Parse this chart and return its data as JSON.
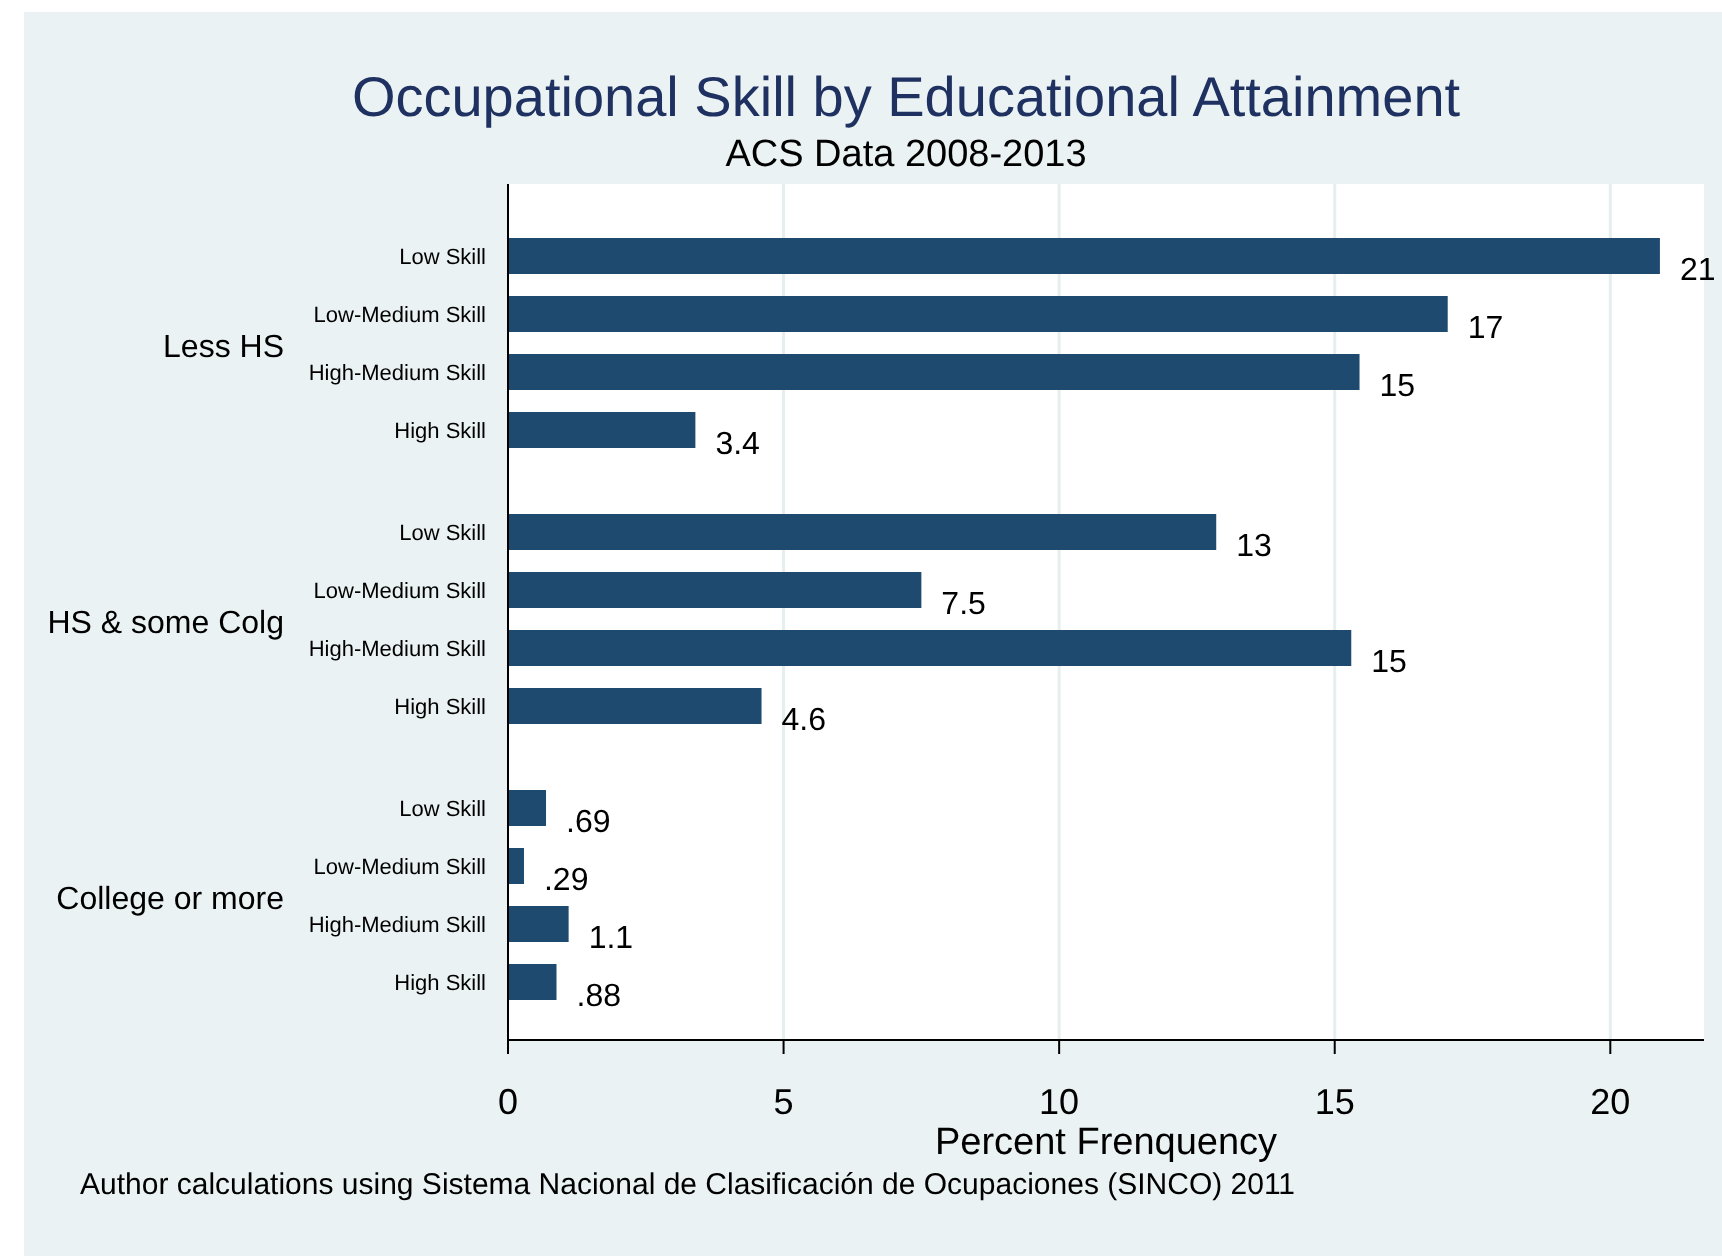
{
  "chart_data": {
    "type": "bar",
    "orientation": "horizontal",
    "title": "Occupational Skill by Educational Attainment",
    "subtitle": "ACS Data 2008-2013",
    "xlabel": "Percent Frenquency",
    "categories": [
      "Low Skill",
      "Low-Medium Skill",
      "High-Medium Skill",
      "High Skill",
      "Low Skill",
      "Low-Medium Skill",
      "High-Medium Skill",
      "High Skill",
      "Low Skill",
      "Low-Medium Skill",
      "High-Medium Skill",
      "High Skill"
    ],
    "values": [
      20.9,
      17.05,
      15.45,
      3.4,
      12.85,
      7.5,
      15.3,
      4.6,
      0.69,
      0.29,
      1.1,
      0.88
    ],
    "value_labels": [
      "21",
      "17",
      "15",
      "3.4",
      "13",
      "7.5",
      "15",
      "4.6",
      ".69",
      ".29",
      "1.1",
      ".88"
    ],
    "color": "#1f4a70",
    "xlim": [
      0,
      21.7
    ],
    "xticks": [
      0,
      5,
      10,
      15,
      20
    ],
    "grid": "x",
    "annotations": [
      "Less HS",
      "HS & some Colg",
      "College or more",
      "Author calculations using Sistema Nacional de Clasificación de Ocupaciones (SINCO) 2011"
    ]
  }
}
